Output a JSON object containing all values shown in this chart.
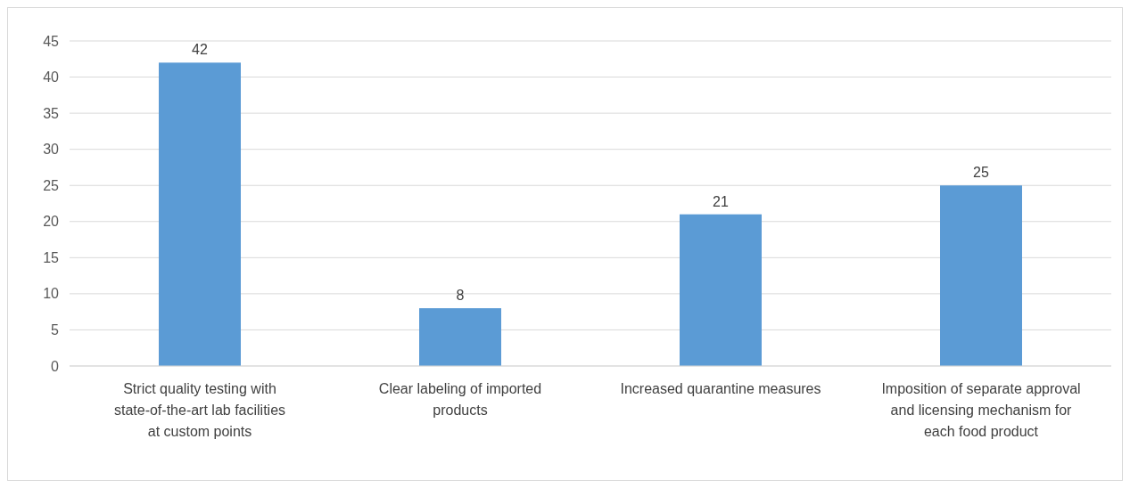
{
  "chart_data": {
    "type": "bar",
    "categories": [
      "Strict quality testing with state-of-the-art lab facilities at custom points",
      "Clear labeling of imported products",
      "Increased quarantine measures",
      "Imposition of separate approval and licensing mechanism for each food product"
    ],
    "values": [
      42,
      8,
      21,
      25
    ],
    "color": "#5b9bd5",
    "ylim": [
      0,
      45
    ],
    "yticks": [
      0,
      5,
      10,
      15,
      20,
      25,
      30,
      35,
      40,
      45
    ],
    "grid": "y",
    "data_labels": true
  }
}
